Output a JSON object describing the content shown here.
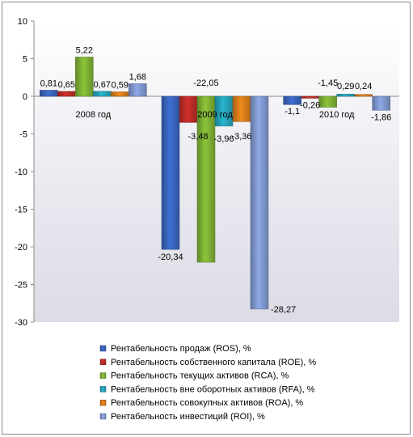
{
  "chart_data": {
    "type": "bar",
    "title": "",
    "xlabel": "",
    "ylabel": "",
    "ylim": [
      -30,
      10
    ],
    "yticks": [
      10,
      5,
      0,
      -5,
      -10,
      -15,
      -20,
      -25,
      -30
    ],
    "grid": false,
    "legend_position": "bottom",
    "categories": [
      "2008 год",
      "2009 год",
      "2010 год"
    ],
    "series": [
      {
        "name": "Рентабельность продаж (ROS), %",
        "color": "#3f6fd2",
        "values": [
          0.81,
          -20.34,
          -1.1
        ]
      },
      {
        "name": "Рентабельность собственного капитала (ROE), %",
        "color": "#d0312b",
        "values": [
          0.65,
          -3.48,
          -0.26
        ]
      },
      {
        "name": "Рентабельность текущих активов (RCA), %",
        "color": "#8cc43a",
        "values": [
          5.22,
          -22.05,
          -1.45
        ]
      },
      {
        "name": "Рентабельность вне оборотных активов (RFA), %",
        "color": "#2ab5cf",
        "values": [
          0.67,
          -3.96,
          0.29
        ]
      },
      {
        "name": "Рентабельность совокупных активов (ROA), %",
        "color": "#f08a1c",
        "values": [
          0.59,
          -3.36,
          0.24
        ]
      },
      {
        "name": "Рентабельность инвестиций (ROI), %",
        "color": "#8ea9e6",
        "values": [
          1.68,
          -28.27,
          -1.86
        ]
      }
    ],
    "data_labels": [
      [
        "0,81",
        "-20,34",
        "-1,1"
      ],
      [
        "0,65",
        "-3,48",
        "-0,26"
      ],
      [
        "5,22",
        "-22,05",
        "-1,45"
      ],
      [
        "0,67",
        "-3,96",
        "0,29"
      ],
      [
        "0,59",
        "-3,36",
        "0,24"
      ],
      [
        "1,68",
        "-28,27",
        "-1,86"
      ]
    ]
  }
}
